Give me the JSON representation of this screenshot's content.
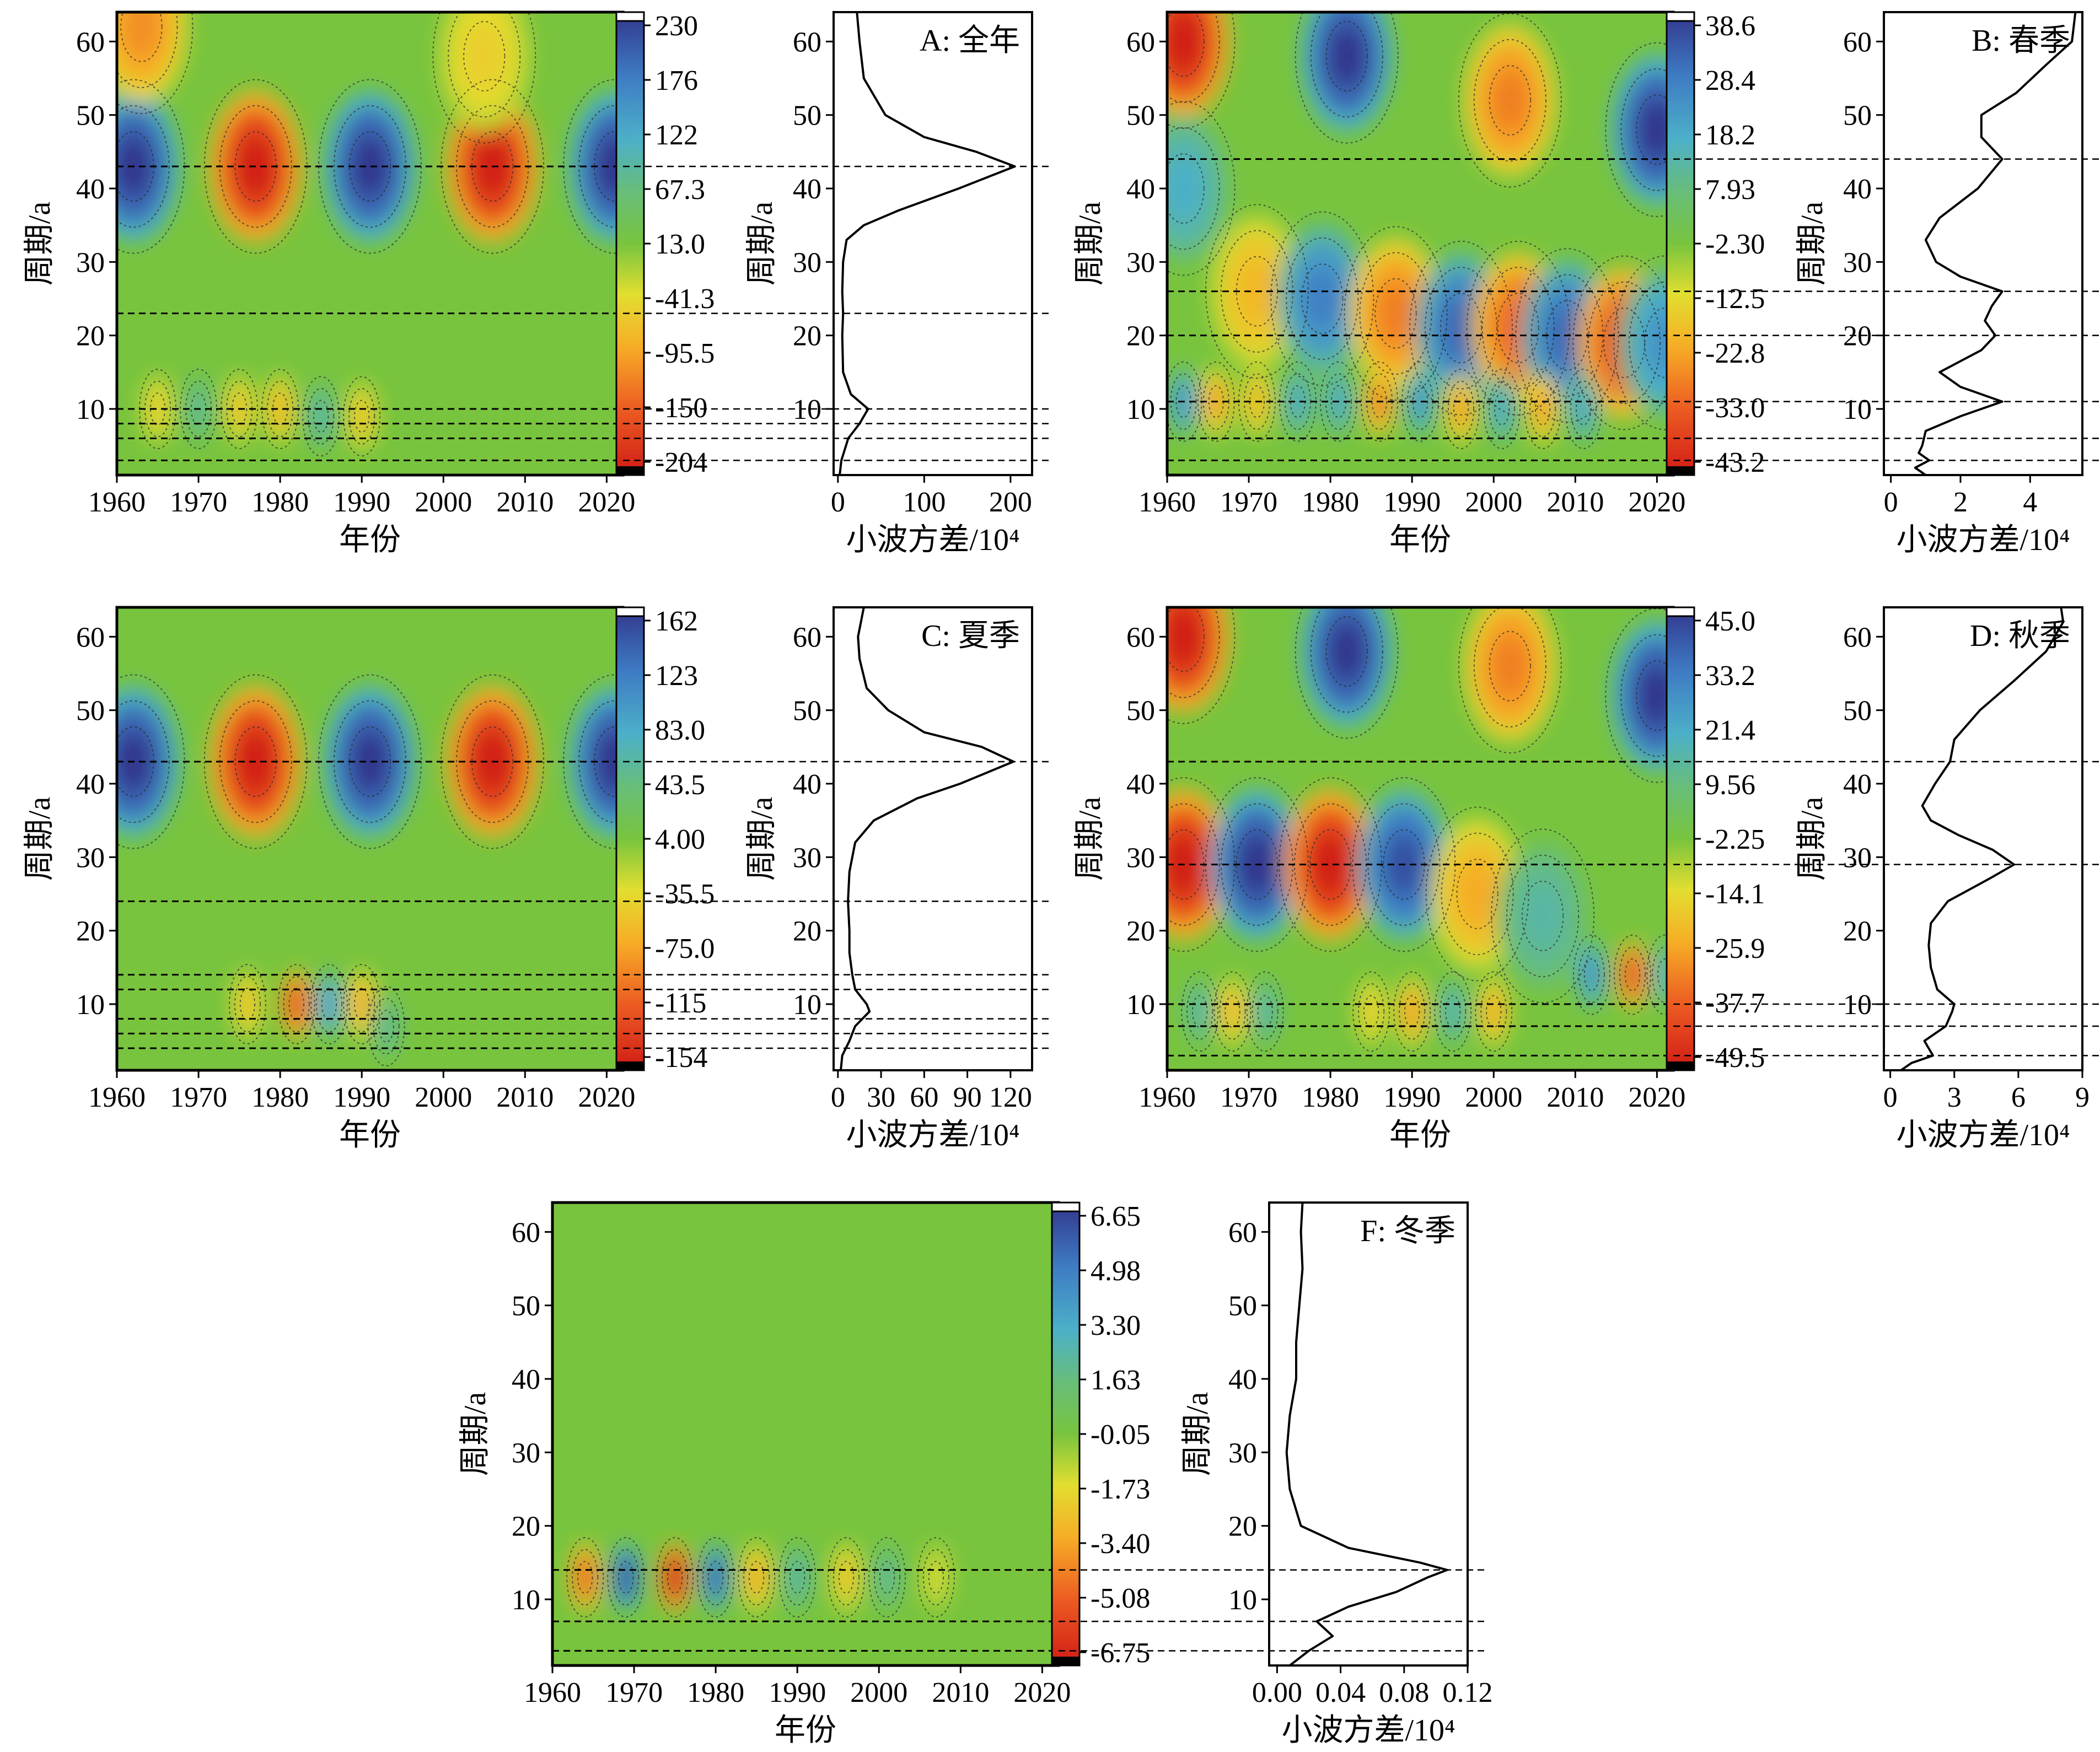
{
  "chart_data": [
    {
      "type": "heatmap",
      "panel": "A",
      "title": "A: 全年",
      "xlabel": "年份",
      "ylabel": "周期/a",
      "xlim": [
        1960,
        2022
      ],
      "ylim": [
        1,
        64
      ],
      "xticks": [
        1960,
        1970,
        1980,
        1990,
        2000,
        2010,
        2020
      ],
      "yticks": [
        10,
        20,
        30,
        40,
        50,
        60
      ],
      "colorbar_labels": [
        "230",
        "176",
        "122",
        "67.3",
        "13.0",
        "-41.3",
        "-95.5",
        "-150",
        "-204"
      ],
      "colorbar_range": [
        -204,
        230
      ],
      "dominant_periods": [
        43,
        23,
        10,
        8,
        6,
        3
      ],
      "blobs": [
        {
          "x": 1962,
          "y": 43,
          "v": 1.0
        },
        {
          "x": 1977,
          "y": 43,
          "v": -1.0
        },
        {
          "x": 1991,
          "y": 43,
          "v": 1.0
        },
        {
          "x": 2006,
          "y": 43,
          "v": -1.0
        },
        {
          "x": 2021,
          "y": 43,
          "v": 1.0
        },
        {
          "x": 1963,
          "y": 62,
          "v": -0.55
        },
        {
          "x": 2005,
          "y": 58,
          "v": -0.3
        },
        {
          "x": 1965,
          "y": 10,
          "v": -0.3
        },
        {
          "x": 1970,
          "y": 10,
          "v": 0.3
        },
        {
          "x": 1975,
          "y": 10,
          "v": -0.35
        },
        {
          "x": 1980,
          "y": 10,
          "v": -0.4
        },
        {
          "x": 1985,
          "y": 9,
          "v": 0.35
        },
        {
          "x": 1990,
          "y": 9,
          "v": -0.35
        }
      ],
      "variance": {
        "xlabel": "小波方差/10⁴",
        "xticks": [
          0,
          100,
          200
        ],
        "xlim": [
          -5,
          225
        ],
        "period": [
          1,
          3,
          6,
          8,
          10,
          12,
          15,
          20,
          23,
          26,
          30,
          33,
          35,
          37,
          40,
          43,
          45,
          47,
          50,
          55,
          60,
          64
        ],
        "value": [
          2,
          4,
          12,
          25,
          35,
          15,
          6,
          5,
          6,
          5,
          6,
          10,
          30,
          70,
          140,
          205,
          160,
          100,
          55,
          30,
          25,
          22
        ]
      }
    },
    {
      "type": "heatmap",
      "panel": "B",
      "title": "B: 春季",
      "xlabel": "年份",
      "ylabel": "周期/a",
      "xlim": [
        1960,
        2022
      ],
      "ylim": [
        1,
        64
      ],
      "xticks": [
        1960,
        1970,
        1980,
        1990,
        2000,
        2010,
        2020
      ],
      "yticks": [
        10,
        20,
        30,
        40,
        50,
        60
      ],
      "colorbar_labels": [
        "38.6",
        "28.4",
        "18.2",
        "7.93",
        "-2.30",
        "-12.5",
        "-22.8",
        "-33.0",
        "-43.2"
      ],
      "colorbar_range": [
        -43.2,
        38.6
      ],
      "dominant_periods": [
        44,
        26,
        20,
        11,
        6,
        3
      ],
      "blobs": [
        {
          "x": 1962,
          "y": 60,
          "v": -1.0
        },
        {
          "x": 1982,
          "y": 58,
          "v": 1.0
        },
        {
          "x": 2002,
          "y": 52,
          "v": -0.6
        },
        {
          "x": 2020,
          "y": 48,
          "v": 1.0
        },
        {
          "x": 1962,
          "y": 40,
          "v": 0.45
        },
        {
          "x": 1971,
          "y": 26,
          "v": -0.4
        },
        {
          "x": 1979,
          "y": 25,
          "v": 0.7
        },
        {
          "x": 1988,
          "y": 23,
          "v": -0.6
        },
        {
          "x": 1996,
          "y": 21,
          "v": 0.8
        },
        {
          "x": 2003,
          "y": 21,
          "v": -0.7
        },
        {
          "x": 2009,
          "y": 20,
          "v": 0.8
        },
        {
          "x": 2016,
          "y": 19,
          "v": -0.8
        },
        {
          "x": 2021,
          "y": 19,
          "v": 0.6
        },
        {
          "x": 1962,
          "y": 11,
          "v": 0.6
        },
        {
          "x": 1966,
          "y": 11,
          "v": -0.5
        },
        {
          "x": 1971,
          "y": 11,
          "v": -0.4
        },
        {
          "x": 1976,
          "y": 11,
          "v": 0.5
        },
        {
          "x": 1981,
          "y": 11,
          "v": 0.5
        },
        {
          "x": 1986,
          "y": 11,
          "v": -0.6
        },
        {
          "x": 1991,
          "y": 11,
          "v": 0.6
        },
        {
          "x": 1996,
          "y": 10,
          "v": -0.5
        },
        {
          "x": 2001,
          "y": 10,
          "v": 0.5
        },
        {
          "x": 2006,
          "y": 10,
          "v": -0.5
        },
        {
          "x": 2011,
          "y": 10,
          "v": 0.5
        }
      ],
      "variance": {
        "xlabel": "小波方差/10⁴",
        "xticks": [
          0,
          2,
          4
        ],
        "xlim": [
          -0.2,
          5.5
        ],
        "period": [
          1,
          2,
          3,
          4,
          5,
          7,
          9,
          11,
          13,
          15,
          18,
          20,
          22,
          24,
          26,
          28,
          30,
          33,
          36,
          40,
          44,
          47,
          50,
          53,
          57,
          60,
          64
        ],
        "value": [
          1.0,
          0.7,
          1.1,
          0.8,
          0.9,
          1.0,
          2.0,
          3.2,
          2.0,
          1.4,
          2.6,
          3.0,
          2.7,
          2.9,
          3.2,
          2.0,
          1.3,
          1.0,
          1.4,
          2.5,
          3.2,
          2.6,
          2.6,
          3.6,
          4.5,
          5.2,
          5.3
        ]
      }
    },
    {
      "type": "heatmap",
      "panel": "C",
      "title": "C: 夏季",
      "xlabel": "年份",
      "ylabel": "周期/a",
      "xlim": [
        1960,
        2022
      ],
      "ylim": [
        1,
        64
      ],
      "xticks": [
        1960,
        1970,
        1980,
        1990,
        2000,
        2010,
        2020
      ],
      "yticks": [
        10,
        20,
        30,
        40,
        50,
        60
      ],
      "colorbar_labels": [
        "162",
        "123",
        "83.0",
        "43.5",
        "4.00",
        "-35.5",
        "-75.0",
        "-115",
        "-154"
      ],
      "colorbar_range": [
        -154,
        162
      ],
      "dominant_periods": [
        43,
        24,
        14,
        12,
        8,
        6,
        4
      ],
      "blobs": [
        {
          "x": 1962,
          "y": 43,
          "v": 1.0
        },
        {
          "x": 1977,
          "y": 43,
          "v": -1.0
        },
        {
          "x": 1991,
          "y": 43,
          "v": 1.0
        },
        {
          "x": 2006,
          "y": 43,
          "v": -1.0
        },
        {
          "x": 2021,
          "y": 43,
          "v": 1.0
        },
        {
          "x": 1976,
          "y": 10,
          "v": -0.35
        },
        {
          "x": 1982,
          "y": 10,
          "v": -0.8
        },
        {
          "x": 1986,
          "y": 10,
          "v": 0.55
        },
        {
          "x": 1990,
          "y": 10,
          "v": -0.45
        },
        {
          "x": 1993,
          "y": 7,
          "v": 0.3
        }
      ],
      "variance": {
        "xlabel": "小波方差/10⁴",
        "xticks": [
          0,
          30,
          60,
          90,
          120
        ],
        "xlim": [
          -3,
          135
        ],
        "period": [
          1,
          3,
          5,
          7,
          9,
          10,
          12,
          14,
          17,
          20,
          24,
          28,
          32,
          35,
          38,
          40,
          43,
          45,
          47,
          50,
          53,
          57,
          60,
          64
        ],
        "value": [
          2,
          3,
          8,
          12,
          22,
          20,
          12,
          10,
          8,
          8,
          7,
          8,
          12,
          25,
          55,
          85,
          122,
          100,
          60,
          35,
          20,
          15,
          14,
          18
        ]
      }
    },
    {
      "type": "heatmap",
      "panel": "D",
      "title": "D: 秋季",
      "xlabel": "年份",
      "ylabel": "周期/a",
      "xlim": [
        1960,
        2022
      ],
      "ylim": [
        1,
        64
      ],
      "xticks": [
        1960,
        1970,
        1980,
        1990,
        2000,
        2010,
        2020
      ],
      "yticks": [
        10,
        20,
        30,
        40,
        50,
        60
      ],
      "colorbar_labels": [
        "45.0",
        "33.2",
        "21.4",
        "9.56",
        "-2.25",
        "-14.1",
        "-25.9",
        "-37.7",
        "-49.5"
      ],
      "colorbar_range": [
        -49.5,
        45.0
      ],
      "dominant_periods": [
        43,
        29,
        10,
        7,
        3
      ],
      "blobs": [
        {
          "x": 1962,
          "y": 60,
          "v": -1.0
        },
        {
          "x": 1982,
          "y": 58,
          "v": 1.0
        },
        {
          "x": 2002,
          "y": 56,
          "v": -0.6
        },
        {
          "x": 2020,
          "y": 52,
          "v": 1.0
        },
        {
          "x": 1962,
          "y": 29,
          "v": -1.0
        },
        {
          "x": 1971,
          "y": 29,
          "v": 1.0
        },
        {
          "x": 1980,
          "y": 29,
          "v": -1.0
        },
        {
          "x": 1989,
          "y": 29,
          "v": 0.9
        },
        {
          "x": 1998,
          "y": 25,
          "v": -0.45
        },
        {
          "x": 2006,
          "y": 22,
          "v": 0.35
        },
        {
          "x": 2012,
          "y": 14,
          "v": 0.6
        },
        {
          "x": 2017,
          "y": 14,
          "v": -0.8
        },
        {
          "x": 2021,
          "y": 14,
          "v": 0.4
        },
        {
          "x": 1964,
          "y": 9,
          "v": 0.35
        },
        {
          "x": 1968,
          "y": 9,
          "v": -0.4
        },
        {
          "x": 1972,
          "y": 9,
          "v": 0.35
        },
        {
          "x": 1985,
          "y": 9,
          "v": -0.3
        },
        {
          "x": 1990,
          "y": 9,
          "v": -0.5
        },
        {
          "x": 1995,
          "y": 9,
          "v": 0.4
        },
        {
          "x": 2000,
          "y": 9,
          "v": -0.45
        }
      ],
      "variance": {
        "xlabel": "小波方差/10⁴",
        "xticks": [
          0,
          3,
          6,
          9
        ],
        "xlim": [
          -0.3,
          9.0
        ],
        "period": [
          1,
          2,
          3,
          5,
          7,
          9,
          10,
          12,
          15,
          18,
          21,
          24,
          27,
          29,
          31,
          33,
          35,
          37,
          40,
          43,
          46,
          50,
          54,
          58,
          62,
          64
        ],
        "value": [
          0.5,
          1.0,
          2.0,
          1.6,
          2.6,
          2.9,
          3.0,
          2.2,
          1.9,
          1.8,
          1.9,
          2.7,
          4.6,
          5.8,
          4.8,
          3.2,
          1.9,
          1.5,
          2.1,
          2.8,
          3.0,
          4.2,
          5.8,
          7.3,
          8.1,
          8.0
        ]
      }
    },
    {
      "type": "heatmap",
      "panel": "F",
      "title": "F: 冬季",
      "xlabel": "年份",
      "ylabel": "周期/a",
      "xlim": [
        1960,
        2022
      ],
      "ylim": [
        1,
        64
      ],
      "xticks": [
        1960,
        1970,
        1980,
        1990,
        2000,
        2010,
        2020
      ],
      "yticks": [
        10,
        20,
        30,
        40,
        50,
        60
      ],
      "colorbar_labels": [
        "6.65",
        "4.98",
        "3.30",
        "1.63",
        "-0.05",
        "-1.73",
        "-3.40",
        "-5.08",
        "-6.75"
      ],
      "colorbar_range": [
        -6.75,
        6.65
      ],
      "dominant_periods": [
        14,
        7,
        3
      ],
      "blobs": [
        {
          "x": 1964,
          "y": 13,
          "v": -0.7
        },
        {
          "x": 1969,
          "y": 13,
          "v": 0.9
        },
        {
          "x": 1975,
          "y": 13,
          "v": -1.0
        },
        {
          "x": 1980,
          "y": 13,
          "v": 0.8
        },
        {
          "x": 1985,
          "y": 13,
          "v": -0.45
        },
        {
          "x": 1990,
          "y": 13,
          "v": 0.35
        },
        {
          "x": 1996,
          "y": 13,
          "v": -0.35
        },
        {
          "x": 2001,
          "y": 13,
          "v": 0.3
        },
        {
          "x": 2007,
          "y": 13,
          "v": -0.2
        }
      ],
      "variance": {
        "xlabel": "小波方差/10⁴",
        "xticks": [
          0.0,
          0.04,
          0.08,
          0.12
        ],
        "xlim": [
          -0.005,
          0.12
        ],
        "period": [
          1,
          3,
          5,
          7,
          9,
          11,
          13,
          14,
          15,
          17,
          20,
          25,
          30,
          35,
          40,
          45,
          50,
          55,
          60,
          64
        ],
        "value": [
          0.008,
          0.02,
          0.035,
          0.025,
          0.045,
          0.075,
          0.095,
          0.107,
          0.09,
          0.045,
          0.015,
          0.008,
          0.006,
          0.008,
          0.012,
          0.012,
          0.014,
          0.016,
          0.015,
          0.016
        ]
      }
    }
  ]
}
